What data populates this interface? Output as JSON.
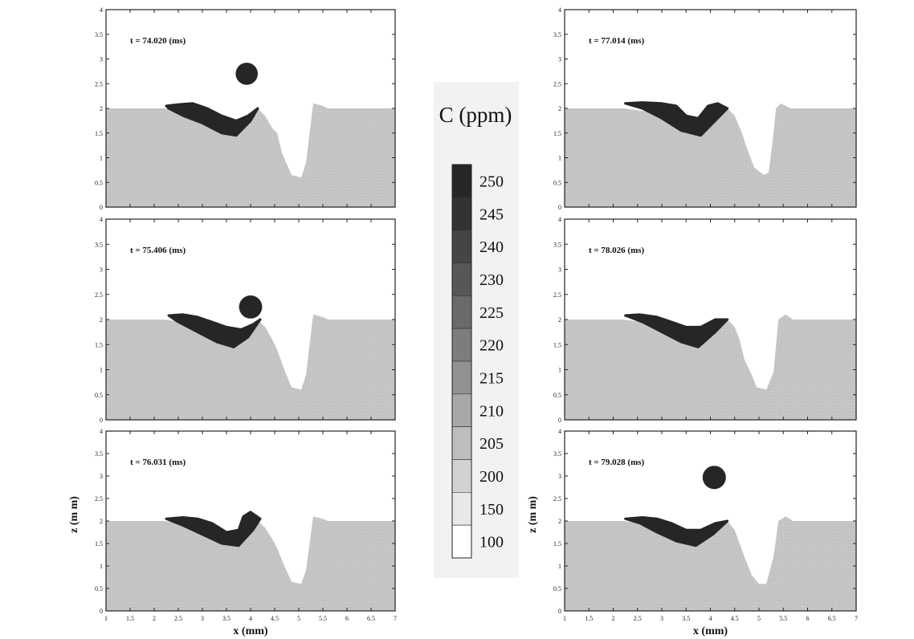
{
  "figure": {
    "colorbar": {
      "title": "C (ppm)",
      "levels": [
        250,
        245,
        240,
        230,
        225,
        220,
        215,
        210,
        205,
        200,
        150,
        100
      ],
      "colors": [
        "#262626",
        "#333333",
        "#454545",
        "#575757",
        "#6a6a6a",
        "#7d7d7d",
        "#929292",
        "#a8a8a8",
        "#bdbdbd",
        "#d2d2d2",
        "#e8e8e8",
        "#ffffff"
      ]
    },
    "x_axis_label": "x (mm)",
    "z_axis_label": "z (m m)",
    "panel_colors": {
      "melt": "#c6c6c6",
      "solute": "#262626",
      "frame": "#222222"
    }
  },
  "chart_data": [
    {
      "type": "heatmap",
      "panel": "left-1",
      "time_label": "t = 74.020 (ms)",
      "xlim": [
        1,
        7
      ],
      "ylim": [
        0,
        4
      ],
      "xticks": [
        1,
        1.5,
        2,
        2.5,
        3,
        3.5,
        4,
        4.5,
        5,
        5.5,
        6,
        6.5,
        7
      ],
      "yticks": [
        0,
        0.5,
        1,
        1.5,
        2,
        2.5,
        3,
        3.5,
        4
      ],
      "xlabel": "",
      "ylabel": "",
      "surface": [
        [
          1,
          2.0
        ],
        [
          2.2,
          2.0
        ],
        [
          3.0,
          1.9
        ],
        [
          3.6,
          1.7
        ],
        [
          4.15,
          2.0
        ],
        [
          4.3,
          1.85
        ],
        [
          4.45,
          1.6
        ],
        [
          4.55,
          1.5
        ],
        [
          4.65,
          1.1
        ],
        [
          4.85,
          0.65
        ],
        [
          5.05,
          0.6
        ],
        [
          5.15,
          0.9
        ],
        [
          5.3,
          2.1
        ],
        [
          5.5,
          2.05
        ],
        [
          5.6,
          2.0
        ],
        [
          7,
          2.0
        ]
      ],
      "solute_region": [
        [
          2.25,
          2.05
        ],
        [
          2.5,
          2.08
        ],
        [
          2.8,
          2.1
        ],
        [
          3.1,
          2.0
        ],
        [
          3.4,
          1.85
        ],
        [
          3.7,
          1.75
        ],
        [
          3.95,
          1.85
        ],
        [
          4.15,
          2.0
        ],
        [
          4.0,
          1.75
        ],
        [
          3.7,
          1.45
        ],
        [
          3.4,
          1.5
        ],
        [
          3.0,
          1.7
        ],
        [
          2.6,
          1.85
        ],
        [
          2.3,
          2.0
        ]
      ],
      "droplet": {
        "cx": 3.92,
        "cy": 2.7,
        "r": 0.23
      }
    },
    {
      "type": "heatmap",
      "panel": "left-2",
      "time_label": "t = 75.406 (ms)",
      "xlim": [
        1,
        7
      ],
      "ylim": [
        0,
        4
      ],
      "xticks": [
        1,
        1.5,
        2,
        2.5,
        3,
        3.5,
        4,
        4.5,
        5,
        5.5,
        6,
        6.5,
        7
      ],
      "yticks": [
        0,
        0.5,
        1,
        1.5,
        2,
        2.5,
        3,
        3.5,
        4
      ],
      "xlabel": "",
      "ylabel": "",
      "surface": [
        [
          1,
          2.0
        ],
        [
          2.2,
          2.0
        ],
        [
          3.0,
          1.9
        ],
        [
          3.6,
          1.7
        ],
        [
          4.15,
          2.0
        ],
        [
          4.3,
          1.85
        ],
        [
          4.45,
          1.6
        ],
        [
          4.55,
          1.4
        ],
        [
          4.7,
          1.0
        ],
        [
          4.85,
          0.65
        ],
        [
          5.05,
          0.6
        ],
        [
          5.15,
          0.9
        ],
        [
          5.3,
          2.1
        ],
        [
          5.5,
          2.05
        ],
        [
          5.6,
          2.0
        ],
        [
          7,
          2.0
        ]
      ],
      "solute_region": [
        [
          2.3,
          2.08
        ],
        [
          2.6,
          2.1
        ],
        [
          2.9,
          2.05
        ],
        [
          3.2,
          1.95
        ],
        [
          3.5,
          1.85
        ],
        [
          3.8,
          1.8
        ],
        [
          4.05,
          1.9
        ],
        [
          4.2,
          2.0
        ],
        [
          3.95,
          1.65
        ],
        [
          3.65,
          1.45
        ],
        [
          3.3,
          1.55
        ],
        [
          2.9,
          1.75
        ],
        [
          2.5,
          1.95
        ]
      ],
      "droplet": {
        "cx": 4.0,
        "cy": 2.25,
        "r": 0.24
      }
    },
    {
      "type": "heatmap",
      "panel": "left-3",
      "time_label": "t = 76.031 (ms)",
      "xlim": [
        1,
        7
      ],
      "ylim": [
        0,
        4
      ],
      "xticks": [
        1,
        1.5,
        2,
        2.5,
        3,
        3.5,
        4,
        4.5,
        5,
        5.5,
        6,
        6.5,
        7
      ],
      "yticks": [
        0,
        0.5,
        1,
        1.5,
        2,
        2.5,
        3,
        3.5,
        4
      ],
      "xlabel": "x (mm)",
      "ylabel": "z (m m)",
      "surface": [
        [
          1,
          2.0
        ],
        [
          2.2,
          2.0
        ],
        [
          3.0,
          1.9
        ],
        [
          3.6,
          1.7
        ],
        [
          4.15,
          2.0
        ],
        [
          4.3,
          1.85
        ],
        [
          4.45,
          1.6
        ],
        [
          4.55,
          1.4
        ],
        [
          4.7,
          1.0
        ],
        [
          4.85,
          0.65
        ],
        [
          5.05,
          0.6
        ],
        [
          5.15,
          0.9
        ],
        [
          5.3,
          2.1
        ],
        [
          5.5,
          2.05
        ],
        [
          5.6,
          2.0
        ],
        [
          7,
          2.0
        ]
      ],
      "solute_region": [
        [
          2.25,
          2.05
        ],
        [
          2.6,
          2.08
        ],
        [
          2.9,
          2.05
        ],
        [
          3.2,
          1.95
        ],
        [
          3.5,
          1.75
        ],
        [
          3.75,
          1.8
        ],
        [
          3.85,
          2.1
        ],
        [
          4.0,
          2.2
        ],
        [
          4.2,
          2.05
        ],
        [
          4.05,
          1.8
        ],
        [
          3.75,
          1.45
        ],
        [
          3.4,
          1.5
        ],
        [
          3.0,
          1.7
        ],
        [
          2.6,
          1.9
        ]
      ],
      "droplet": null
    },
    {
      "type": "heatmap",
      "panel": "right-1",
      "time_label": "t = 77.014 (ms)",
      "xlim": [
        1,
        7
      ],
      "ylim": [
        0,
        4
      ],
      "xticks": [
        1,
        1.5,
        2,
        2.5,
        3,
        3.5,
        4,
        4.5,
        5,
        5.5,
        6,
        6.5,
        7
      ],
      "yticks": [
        0,
        0.5,
        1,
        1.5,
        2,
        2.5,
        3,
        3.5,
        4
      ],
      "xlabel": "",
      "ylabel": "",
      "surface": [
        [
          1,
          2.0
        ],
        [
          2.2,
          2.0
        ],
        [
          3.0,
          1.9
        ],
        [
          3.6,
          1.7
        ],
        [
          4.35,
          2.0
        ],
        [
          4.5,
          1.85
        ],
        [
          4.65,
          1.5
        ],
        [
          4.75,
          1.2
        ],
        [
          4.9,
          0.8
        ],
        [
          5.1,
          0.65
        ],
        [
          5.2,
          0.7
        ],
        [
          5.3,
          1.5
        ],
        [
          5.35,
          2.0
        ],
        [
          5.45,
          2.1
        ],
        [
          5.65,
          2.0
        ],
        [
          7,
          2.0
        ]
      ],
      "solute_region": [
        [
          2.25,
          2.1
        ],
        [
          2.6,
          2.12
        ],
        [
          3.0,
          2.1
        ],
        [
          3.3,
          2.05
        ],
        [
          3.5,
          1.85
        ],
        [
          3.75,
          1.8
        ],
        [
          3.95,
          2.05
        ],
        [
          4.15,
          2.1
        ],
        [
          4.35,
          2.0
        ],
        [
          4.1,
          1.75
        ],
        [
          3.8,
          1.45
        ],
        [
          3.4,
          1.55
        ],
        [
          3.0,
          1.8
        ],
        [
          2.6,
          2.0
        ]
      ],
      "droplet": null
    },
    {
      "type": "heatmap",
      "panel": "right-2",
      "time_label": "t = 78.026 (ms)",
      "xlim": [
        1,
        7
      ],
      "ylim": [
        0,
        4
      ],
      "xticks": [
        1,
        1.5,
        2,
        2.5,
        3,
        3.5,
        4,
        4.5,
        5,
        5.5,
        6,
        6.5,
        7
      ],
      "yticks": [
        0,
        0.5,
        1,
        1.5,
        2,
        2.5,
        3,
        3.5,
        4
      ],
      "xlabel": "",
      "ylabel": "",
      "surface": [
        [
          1,
          2.0
        ],
        [
          2.2,
          2.0
        ],
        [
          3.0,
          1.9
        ],
        [
          3.6,
          1.7
        ],
        [
          4.35,
          2.0
        ],
        [
          4.5,
          1.85
        ],
        [
          4.6,
          1.6
        ],
        [
          4.7,
          1.2
        ],
        [
          4.85,
          0.9
        ],
        [
          4.95,
          0.65
        ],
        [
          5.15,
          0.6
        ],
        [
          5.3,
          0.95
        ],
        [
          5.4,
          2.0
        ],
        [
          5.55,
          2.1
        ],
        [
          5.7,
          2.0
        ],
        [
          7,
          2.0
        ]
      ],
      "solute_region": [
        [
          2.25,
          2.08
        ],
        [
          2.55,
          2.1
        ],
        [
          2.9,
          2.05
        ],
        [
          3.2,
          1.95
        ],
        [
          3.5,
          1.85
        ],
        [
          3.8,
          1.85
        ],
        [
          4.1,
          2.0
        ],
        [
          4.35,
          2.0
        ],
        [
          4.1,
          1.75
        ],
        [
          3.75,
          1.45
        ],
        [
          3.4,
          1.55
        ],
        [
          3.0,
          1.75
        ],
        [
          2.6,
          1.95
        ]
      ],
      "droplet": null
    },
    {
      "type": "heatmap",
      "panel": "right-3",
      "time_label": "t = 79.028 (ms)",
      "xlim": [
        1,
        7
      ],
      "ylim": [
        0,
        4
      ],
      "xticks": [
        1,
        1.5,
        2,
        2.5,
        3,
        3.5,
        4,
        4.5,
        5,
        5.5,
        6,
        6.5,
        7
      ],
      "yticks": [
        0,
        0.5,
        1,
        1.5,
        2,
        2.5,
        3,
        3.5,
        4
      ],
      "xlabel": "x (mm)",
      "ylabel": "z (m m)",
      "surface": [
        [
          1,
          2.0
        ],
        [
          2.2,
          2.0
        ],
        [
          3.0,
          1.9
        ],
        [
          3.6,
          1.7
        ],
        [
          4.35,
          2.0
        ],
        [
          4.5,
          1.8
        ],
        [
          4.6,
          1.5
        ],
        [
          4.7,
          1.2
        ],
        [
          4.85,
          0.8
        ],
        [
          5.0,
          0.6
        ],
        [
          5.15,
          0.6
        ],
        [
          5.3,
          1.2
        ],
        [
          5.4,
          2.0
        ],
        [
          5.55,
          2.1
        ],
        [
          5.7,
          2.0
        ],
        [
          7,
          2.0
        ]
      ],
      "solute_region": [
        [
          2.25,
          2.05
        ],
        [
          2.6,
          2.08
        ],
        [
          2.9,
          2.05
        ],
        [
          3.2,
          1.95
        ],
        [
          3.5,
          1.8
        ],
        [
          3.8,
          1.8
        ],
        [
          4.1,
          1.95
        ],
        [
          4.35,
          2.0
        ],
        [
          4.05,
          1.7
        ],
        [
          3.7,
          1.45
        ],
        [
          3.3,
          1.55
        ],
        [
          2.9,
          1.75
        ],
        [
          2.55,
          1.95
        ]
      ],
      "droplet": {
        "cx": 4.08,
        "cy": 2.97,
        "r": 0.24
      }
    }
  ]
}
